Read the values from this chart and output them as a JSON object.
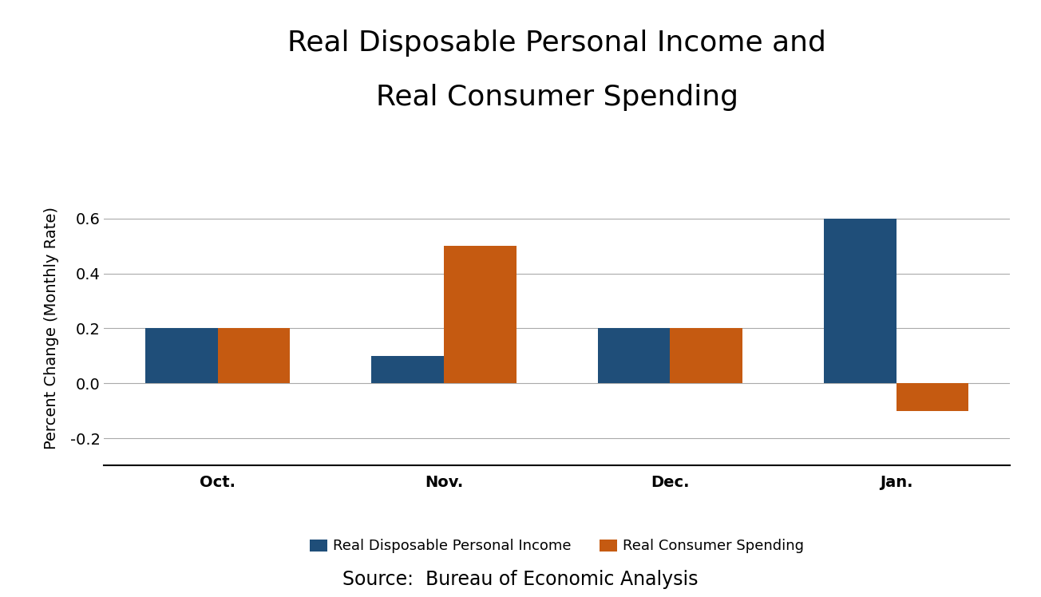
{
  "title_line1": "Real Disposable Personal Income and",
  "title_line2": "Real Consumer Spending",
  "categories": [
    "Oct.",
    "Nov.",
    "Dec.",
    "Jan."
  ],
  "income_values": [
    0.2,
    0.1,
    0.2,
    0.6
  ],
  "spending_values": [
    0.2,
    0.5,
    0.2,
    -0.1
  ],
  "income_color": "#1F4E79",
  "spending_color": "#C55A11",
  "ylabel": "Percent Change (Monthly Rate)",
  "ylim": [
    -0.3,
    0.7
  ],
  "yticks": [
    -0.2,
    0.0,
    0.2,
    0.4,
    0.6
  ],
  "legend_income": "Real Disposable Personal Income",
  "legend_spending": "Real Consumer Spending",
  "source_text": "Source:  Bureau of Economic Analysis",
  "title_fontsize": 26,
  "ylabel_fontsize": 14,
  "tick_fontsize": 14,
  "legend_fontsize": 13,
  "source_fontsize": 17,
  "bar_width": 0.32,
  "background_color": "#ffffff"
}
